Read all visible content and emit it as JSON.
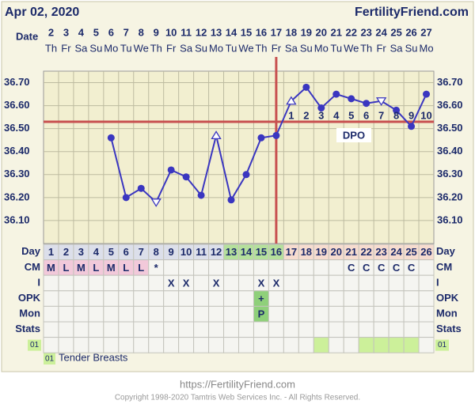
{
  "header": {
    "title": "Apr 02, 2020",
    "site": "FertilityFriend.com",
    "date_label": "Date"
  },
  "chart_data": {
    "type": "line",
    "categories": [
      "2",
      "3",
      "4",
      "5",
      "6",
      "7",
      "8",
      "9",
      "10",
      "11",
      "12",
      "13",
      "14",
      "15",
      "16",
      "17",
      "18",
      "19",
      "20",
      "21",
      "22",
      "23",
      "24",
      "25",
      "26",
      "27"
    ],
    "weekdays": [
      "Th",
      "Fr",
      "Sa",
      "Su",
      "Mo",
      "Tu",
      "We",
      "Th",
      "Fr",
      "Sa",
      "Su",
      "Mo",
      "Tu",
      "We",
      "Th",
      "Fr",
      "Sa",
      "Su",
      "Mo",
      "Tu",
      "We",
      "Th",
      "Fr",
      "Sa",
      "Su",
      "Mo"
    ],
    "series": [
      {
        "name": "Temperature",
        "color": "#3a36c0",
        "values": [
          null,
          null,
          null,
          null,
          36.46,
          36.2,
          36.24,
          36.18,
          36.32,
          36.29,
          36.21,
          36.47,
          36.19,
          36.3,
          36.46,
          36.47,
          36.62,
          36.68,
          36.59,
          36.65,
          36.63,
          36.61,
          36.62,
          36.58,
          36.51,
          36.65
        ],
        "markers": [
          null,
          null,
          null,
          null,
          "circle",
          "circle",
          "circle",
          "triangle-down",
          "circle",
          "circle",
          "circle",
          "triangle-up",
          "circle",
          "circle",
          "circle",
          "circle",
          "triangle-up",
          "circle",
          "circle",
          "circle",
          "circle",
          "circle",
          "triangle-down",
          "circle",
          "circle",
          "circle"
        ]
      }
    ],
    "ylim": [
      36.0,
      36.75
    ],
    "yticks": [
      {
        "value": 36.1,
        "label": "36.10"
      },
      {
        "value": 36.2,
        "label": "36.20"
      },
      {
        "value": 36.3,
        "label": "36.30"
      },
      {
        "value": 36.4,
        "label": "36.40"
      },
      {
        "value": 36.5,
        "label": "36.50"
      },
      {
        "value": 36.6,
        "label": "36.60"
      },
      {
        "value": 36.7,
        "label": "36.70"
      }
    ],
    "grid": true,
    "coverline": 36.53,
    "coverline_color": "#c85050",
    "ovulation_index": 15,
    "dpo_labels": [
      null,
      null,
      null,
      null,
      null,
      null,
      null,
      null,
      null,
      null,
      null,
      null,
      null,
      null,
      null,
      null,
      "1",
      "2",
      "3",
      "4",
      "5",
      "6",
      "7",
      "8",
      "9",
      "10"
    ],
    "dpo_title": "DPO"
  },
  "table": {
    "rows": [
      {
        "label": "Day",
        "cells": [
          "1",
          "2",
          "3",
          "4",
          "5",
          "6",
          "7",
          "8",
          "9",
          "10",
          "11",
          "12",
          "13",
          "14",
          "15",
          "16",
          "17",
          "18",
          "19",
          "20",
          "21",
          "22",
          "23",
          "24",
          "25",
          "26"
        ],
        "colors": [
          "#dcdfea",
          "#dcdfea",
          "#dcdfea",
          "#dcdfea",
          "#dcdfea",
          "#dcdfea",
          "#dcdfea",
          "#dcdfea",
          "#dcdfea",
          "#dcdfea",
          "#dcdfea",
          "#dcdfea",
          "#b5e09c",
          "#b5e09c",
          "#b5e09c",
          "#b5e09c",
          "#f6dccf",
          "#f6dccf",
          "#f6dccf",
          "#f6dccf",
          "#f6dccf",
          "#f6dccf",
          "#f6dccf",
          "#f6dccf",
          "#f6dccf",
          "#f6dccf"
        ]
      },
      {
        "label": "CM",
        "cells": [
          "M",
          "L",
          "M",
          "L",
          "M",
          "L",
          "L",
          "*",
          null,
          null,
          null,
          null,
          null,
          null,
          null,
          null,
          null,
          null,
          null,
          null,
          "C",
          "C",
          "C",
          "C",
          "C",
          null
        ],
        "colors": [
          "#f2c9da",
          "#f2c9da",
          "#f2c9da",
          "#f2c9da",
          "#f2c9da",
          "#f2c9da",
          "#f2c9da",
          null,
          null,
          null,
          null,
          null,
          null,
          null,
          null,
          null,
          null,
          null,
          null,
          null,
          null,
          null,
          null,
          null,
          null,
          null
        ]
      },
      {
        "label": "I",
        "cells": [
          null,
          null,
          null,
          null,
          null,
          null,
          null,
          null,
          "X",
          "X",
          null,
          "X",
          null,
          null,
          "X",
          "X",
          null,
          null,
          null,
          null,
          null,
          null,
          null,
          null,
          null,
          null
        ]
      },
      {
        "label": "OPK",
        "cells": [
          null,
          null,
          null,
          null,
          null,
          null,
          null,
          null,
          null,
          null,
          null,
          null,
          null,
          null,
          "+",
          null,
          null,
          null,
          null,
          null,
          null,
          null,
          null,
          null,
          null,
          null
        ],
        "colors": [
          null,
          null,
          null,
          null,
          null,
          null,
          null,
          null,
          null,
          null,
          null,
          null,
          null,
          null,
          "#8fd07a",
          null,
          null,
          null,
          null,
          null,
          null,
          null,
          null,
          null,
          null,
          null
        ]
      },
      {
        "label": "Mon",
        "cells": [
          null,
          null,
          null,
          null,
          null,
          null,
          null,
          null,
          null,
          null,
          null,
          null,
          null,
          null,
          "P",
          null,
          null,
          null,
          null,
          null,
          null,
          null,
          null,
          null,
          null,
          null
        ],
        "colors": [
          null,
          null,
          null,
          null,
          null,
          null,
          null,
          null,
          null,
          null,
          null,
          null,
          null,
          null,
          "#8fd07a",
          null,
          null,
          null,
          null,
          null,
          null,
          null,
          null,
          null,
          null,
          null
        ]
      },
      {
        "label": "Stats",
        "cells": [
          null,
          null,
          null,
          null,
          null,
          null,
          null,
          null,
          null,
          null,
          null,
          null,
          null,
          null,
          null,
          null,
          null,
          null,
          null,
          null,
          null,
          null,
          null,
          null,
          null,
          null
        ]
      },
      {
        "label": "01",
        "cells": [
          null,
          null,
          null,
          null,
          null,
          null,
          null,
          null,
          null,
          null,
          null,
          null,
          null,
          null,
          null,
          null,
          null,
          null,
          null,
          null,
          null,
          null,
          null,
          null,
          null,
          null
        ],
        "colors": [
          null,
          null,
          null,
          null,
          null,
          null,
          null,
          null,
          null,
          null,
          null,
          null,
          null,
          null,
          null,
          null,
          null,
          null,
          "#ccf09a",
          null,
          null,
          "#ccf09a",
          "#ccf09a",
          "#ccf09a",
          "#ccf09a",
          null
        ]
      }
    ]
  },
  "legend": {
    "code": "01",
    "text": "Tender Breasts"
  },
  "footer": {
    "url": "https://FertilityFriend.com",
    "copyright": "Copyright 1998-2020 Tamtris Web Services Inc. - All Rights Reserved."
  }
}
